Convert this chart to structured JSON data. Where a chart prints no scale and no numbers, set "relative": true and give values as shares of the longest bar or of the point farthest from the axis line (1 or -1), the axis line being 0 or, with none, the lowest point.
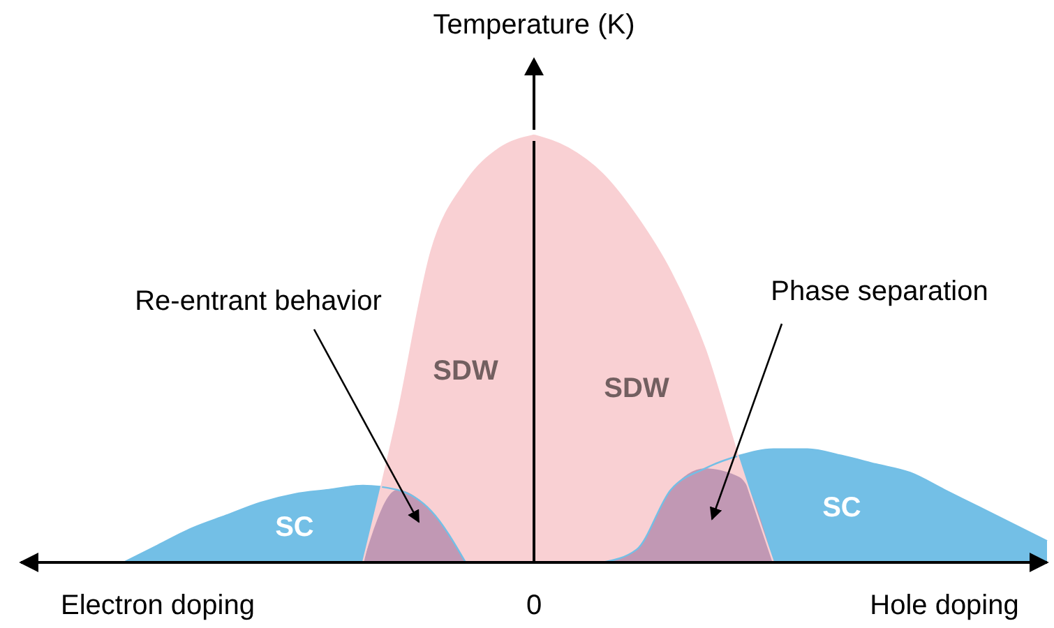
{
  "chart_data": {
    "type": "area",
    "relative": true,
    "ylabel": "Temperature (K)",
    "grid": false,
    "categories": [
      null,
      null,
      null,
      null,
      "Electron doping",
      null,
      null,
      null,
      null,
      null,
      null,
      null,
      null,
      null,
      null,
      "0",
      null,
      null,
      null,
      null,
      null,
      null,
      null,
      null,
      null,
      null,
      null,
      "Hole doping",
      null,
      null,
      null
    ],
    "series": [
      {
        "name": "SC",
        "color": "#73bfe6",
        "values": [
          null,
          null,
          null,
          0,
          0.04,
          0.08,
          0.11,
          0.14,
          0.16,
          0.17,
          0.18,
          0.17,
          0.12,
          0,
          null,
          null,
          null,
          null,
          null,
          null,
          null,
          null,
          null,
          null,
          null,
          null,
          null,
          null,
          null,
          null,
          null
        ]
      },
      {
        "name": "SC",
        "color": "#73bfe6",
        "values": [
          null,
          null,
          null,
          null,
          null,
          null,
          null,
          null,
          null,
          null,
          null,
          null,
          null,
          null,
          null,
          null,
          null,
          0,
          0.03,
          0.17,
          0.22,
          0.25,
          0.265,
          0.265,
          0.25,
          0.23,
          0.21,
          0.17,
          0.13,
          0.09,
          0.05
        ]
      },
      {
        "name": "SDW",
        "color": "#f9d0d3",
        "values": [
          null,
          null,
          null,
          null,
          null,
          null,
          null,
          null,
          null,
          null,
          0,
          0.34,
          0.73,
          0.89,
          0.97,
          1,
          null,
          null,
          null,
          null,
          null,
          null,
          null,
          null,
          null,
          null,
          null,
          null,
          null,
          null,
          null
        ]
      },
      {
        "name": "SDW",
        "color": "#f9d0d3",
        "values": [
          null,
          null,
          null,
          null,
          null,
          null,
          null,
          null,
          null,
          null,
          null,
          null,
          null,
          null,
          null,
          1,
          0.97,
          0.91,
          0.81,
          0.68,
          0.5,
          0.24,
          0,
          null,
          null,
          null,
          null,
          null,
          null,
          null,
          null
        ]
      },
      {
        "color": "#c198b4",
        "values": [
          null,
          null,
          null,
          null,
          null,
          null,
          null,
          null,
          null,
          null,
          0,
          0.17,
          0.12,
          0,
          null,
          null,
          null,
          0,
          0.03,
          0.17,
          0.22,
          0.2,
          0,
          null,
          null,
          null,
          null,
          null,
          null,
          null,
          null
        ]
      }
    ],
    "annotations": [
      "Re-entrant behavior",
      "Phase separation"
    ]
  }
}
